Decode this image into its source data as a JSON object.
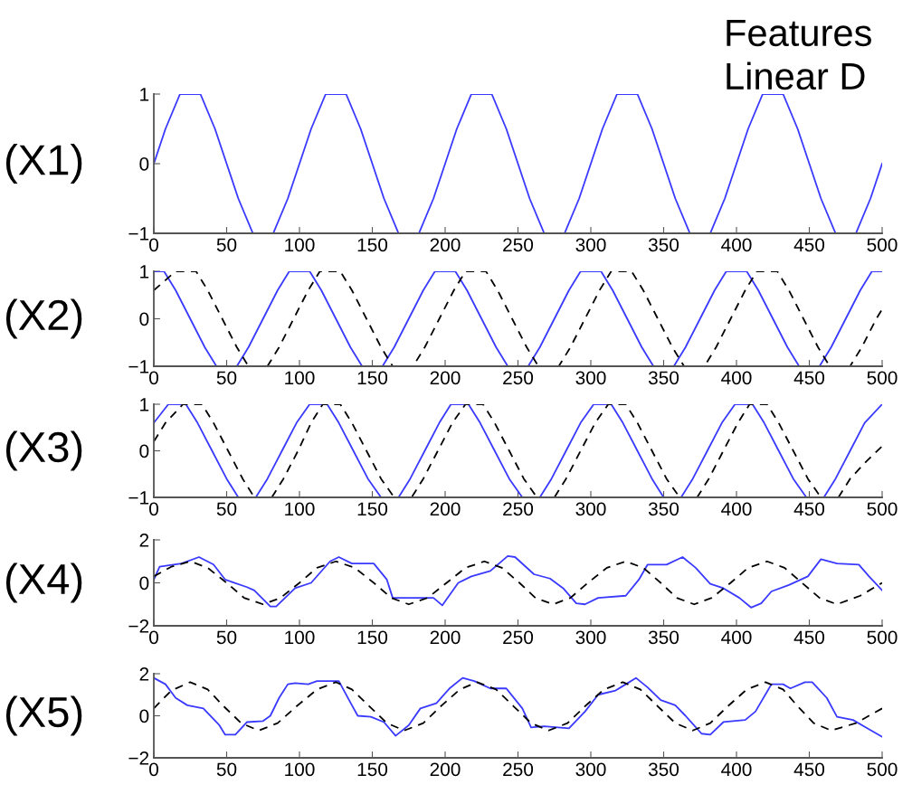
{
  "chart_data": [
    {
      "type": "line",
      "annotations": [
        "Features",
        "Linear D"
      ],
      "ylabel": "(X1)",
      "xlim": [
        0,
        500
      ],
      "xticks": [
        0,
        50,
        100,
        150,
        200,
        250,
        300,
        350,
        400,
        450,
        500
      ],
      "ylim": [
        -1,
        1
      ],
      "yticks": [
        -1,
        0,
        1
      ],
      "grid": false,
      "series": [
        {
          "color": "#3a3aff",
          "line_style": "solid",
          "x": [
            0,
            8,
            18,
            32,
            42,
            50,
            58,
            68,
            82,
            92,
            100,
            108,
            118,
            132,
            142,
            150,
            158,
            168,
            182,
            192,
            200,
            208,
            218,
            232,
            242,
            250,
            258,
            268,
            282,
            292,
            300,
            308,
            318,
            332,
            342,
            350,
            358,
            368,
            382,
            392,
            400,
            408,
            418,
            432,
            442,
            450,
            458,
            468,
            482,
            492,
            500
          ],
          "values": [
            0,
            0.5,
            1,
            1,
            0.5,
            0,
            -0.5,
            -1,
            -1,
            -0.5,
            0,
            0.5,
            1,
            1,
            0.5,
            0,
            -0.5,
            -1,
            -1,
            -0.5,
            0,
            0.5,
            1,
            1,
            0.5,
            0,
            -0.5,
            -1,
            -1,
            -0.5,
            0,
            0.5,
            1,
            1,
            0.5,
            0,
            -0.5,
            -1,
            -1,
            -0.5,
            0,
            0.5,
            1,
            1,
            0.5,
            0,
            -0.5,
            -1,
            -1,
            -0.5,
            0
          ]
        }
      ]
    },
    {
      "type": "line",
      "ylabel": "(X2)",
      "xlim": [
        0,
        500
      ],
      "xticks": [
        0,
        50,
        100,
        150,
        200,
        250,
        300,
        350,
        400,
        450,
        500
      ],
      "ylim": [
        -1,
        1
      ],
      "yticks": [
        -1,
        0,
        1
      ],
      "grid": false,
      "series": [
        {
          "color": "#3a3aff",
          "line_style": "solid",
          "x": [
            0,
            7,
            15,
            25,
            35,
            43,
            57,
            65,
            75,
            85,
            93,
            107,
            115,
            125,
            135,
            143,
            157,
            165,
            175,
            185,
            193,
            207,
            215,
            225,
            235,
            243,
            257,
            265,
            275,
            285,
            293,
            307,
            315,
            325,
            335,
            343,
            357,
            365,
            375,
            385,
            393,
            407,
            415,
            425,
            435,
            443,
            457,
            465,
            475,
            485,
            493,
            500
          ],
          "values": [
            1,
            1,
            0.6,
            0,
            -0.6,
            -1,
            -1,
            -0.6,
            0,
            0.6,
            1,
            1,
            0.6,
            0,
            -0.6,
            -1,
            -1,
            -0.6,
            0,
            0.6,
            1,
            1,
            0.6,
            0,
            -0.6,
            -1,
            -1,
            -0.6,
            0,
            0.6,
            1,
            1,
            0.6,
            0,
            -0.6,
            -1,
            -1,
            -0.6,
            0,
            0.6,
            1,
            1,
            0.6,
            0,
            -0.6,
            -1,
            -1,
            -0.6,
            0,
            0.6,
            1,
            1
          ]
        },
        {
          "color": "#000000",
          "line_style": "dashed",
          "x": [
            0,
            15,
            29,
            37,
            47,
            57,
            65,
            78,
            86,
            96,
            106,
            114,
            128,
            136,
            146,
            156,
            164,
            178,
            186,
            196,
            206,
            214,
            228,
            236,
            246,
            256,
            264,
            278,
            286,
            296,
            306,
            314,
            328,
            336,
            346,
            356,
            364,
            378,
            386,
            396,
            406,
            414,
            428,
            436,
            446,
            456,
            464,
            478,
            486,
            496,
            500
          ],
          "values": [
            0.6,
            1,
            1,
            0.6,
            0,
            -0.6,
            -1,
            -1,
            -0.6,
            0,
            0.6,
            1,
            1,
            0.6,
            0,
            -0.6,
            -1,
            -1,
            -0.6,
            0,
            0.6,
            1,
            1,
            0.6,
            0,
            -0.6,
            -1,
            -1,
            -0.6,
            0,
            0.6,
            1,
            1,
            0.6,
            0,
            -0.6,
            -1,
            -1,
            -0.6,
            0,
            0.6,
            1,
            1,
            0.6,
            0,
            -0.6,
            -1,
            -1,
            -0.6,
            0,
            0.2
          ]
        }
      ]
    },
    {
      "type": "line",
      "ylabel": "(X3)",
      "xlim": [
        0,
        500
      ],
      "xticks": [
        0,
        50,
        100,
        150,
        200,
        250,
        300,
        350,
        400,
        450,
        500
      ],
      "ylim": [
        -1,
        1
      ],
      "yticks": [
        -1,
        0,
        1
      ],
      "grid": false,
      "series": [
        {
          "color": "#3a3aff",
          "line_style": "solid",
          "x": [
            0,
            10,
            22,
            30,
            40,
            50,
            58,
            70,
            78,
            88,
            98,
            107,
            119,
            127,
            137,
            147,
            156,
            168,
            176,
            186,
            196,
            204,
            216,
            224,
            234,
            244,
            253,
            265,
            273,
            283,
            293,
            302,
            314,
            322,
            332,
            342,
            350,
            362,
            370,
            380,
            390,
            399,
            411,
            419,
            429,
            439,
            448,
            460,
            468,
            478,
            488,
            500
          ],
          "values": [
            0.6,
            1,
            1,
            0.6,
            0,
            -0.6,
            -1,
            -1,
            -0.6,
            0,
            0.6,
            1,
            1,
            0.6,
            0,
            -0.6,
            -1,
            -1,
            -0.6,
            0,
            0.6,
            1,
            1,
            0.6,
            0,
            -0.6,
            -1,
            -1,
            -0.6,
            0,
            0.6,
            1,
            1,
            0.6,
            0,
            -0.6,
            -1,
            -1,
            -0.6,
            0,
            0.6,
            1,
            1,
            0.6,
            0,
            -0.6,
            -1,
            -1,
            -0.6,
            0,
            0.6,
            1
          ]
        },
        {
          "color": "#000000",
          "line_style": "dashed",
          "x": [
            0,
            8,
            20,
            33,
            41,
            51,
            61,
            69,
            81,
            89,
            99,
            108,
            116,
            128,
            136,
            146,
            156,
            165,
            177,
            185,
            195,
            205,
            214,
            226,
            234,
            244,
            254,
            263,
            275,
            283,
            293,
            303,
            312,
            324,
            332,
            342,
            352,
            361,
            373,
            381,
            391,
            401,
            409,
            421,
            429,
            439,
            449,
            458,
            470,
            478,
            490,
            500
          ],
          "values": [
            0.2,
            0.6,
            1,
            1,
            0.6,
            0,
            -0.6,
            -1,
            -1,
            -0.6,
            0,
            0.6,
            1,
            1,
            0.6,
            0,
            -0.6,
            -1,
            -1,
            -0.6,
            0,
            0.6,
            1,
            1,
            0.6,
            0,
            -0.6,
            -1,
            -1,
            -0.6,
            0,
            0.6,
            1,
            1,
            0.6,
            0,
            -0.6,
            -1,
            -1,
            -0.6,
            0,
            0.6,
            1,
            1,
            0.6,
            0,
            -0.6,
            -1,
            -1,
            -0.6,
            -0.2,
            0.1
          ]
        }
      ]
    },
    {
      "type": "line",
      "ylabel": "(X4)",
      "xlim": [
        0,
        500
      ],
      "xticks": [
        0,
        50,
        100,
        150,
        200,
        250,
        300,
        350,
        400,
        450,
        500
      ],
      "ylim": [
        -2,
        2
      ],
      "yticks": [
        -2,
        0,
        2
      ],
      "grid": false,
      "series": [
        {
          "color": "#3a3aff",
          "line_style": "solid",
          "x": [
            0,
            4,
            19,
            31,
            41,
            49,
            64,
            69,
            80,
            84,
            97,
            108,
            121,
            127,
            136,
            151,
            160,
            164,
            179,
            192,
            198,
            209,
            218,
            231,
            243,
            248,
            261,
            272,
            281,
            290,
            296,
            305,
            324,
            333,
            339,
            352,
            363,
            372,
            382,
            391,
            402,
            410,
            417,
            424,
            436,
            449,
            458,
            469,
            484,
            491,
            500
          ],
          "values": [
            0.15,
            0.75,
            0.9,
            1.2,
            0.85,
            0.15,
            -0.2,
            -0.35,
            -1.1,
            -1.1,
            -0.25,
            0,
            1.0,
            1.2,
            0.9,
            0.9,
            0.15,
            -0.7,
            -0.7,
            -0.7,
            -1.05,
            0,
            0.3,
            0.55,
            1.25,
            1.2,
            0.4,
            0.2,
            -0.25,
            -0.95,
            -1.0,
            -0.7,
            -0.6,
            0.15,
            0.85,
            0.85,
            1.2,
            0.7,
            -0.05,
            -0.25,
            -0.7,
            -1.15,
            -0.95,
            -0.4,
            -0.1,
            0.3,
            1.1,
            0.9,
            0.85,
            0.3,
            -0.35
          ]
        },
        {
          "color": "#000000",
          "line_style": "dashed",
          "x": [
            0,
            12,
            25,
            37,
            50,
            62,
            75,
            87,
            100,
            112,
            125,
            138,
            151,
            163,
            175,
            188,
            201,
            214,
            227,
            239,
            251,
            262,
            274,
            286,
            298,
            311,
            324,
            336,
            348,
            359,
            371,
            383,
            396,
            408,
            421,
            433,
            445,
            457,
            469,
            485,
            500
          ],
          "values": [
            0.3,
            0.75,
            1,
            0.7,
            0,
            -0.7,
            -1,
            -0.7,
            0,
            0.7,
            1,
            0.7,
            0,
            -0.7,
            -1,
            -0.7,
            0,
            0.7,
            1,
            0.7,
            0,
            -0.7,
            -1,
            -0.7,
            0,
            0.7,
            1,
            0.7,
            0,
            -0.7,
            -1,
            -0.7,
            0,
            0.7,
            1,
            0.7,
            0,
            -0.7,
            -1,
            -0.6,
            0
          ]
        }
      ]
    },
    {
      "type": "line",
      "ylabel": "(X5)",
      "xlim": [
        0,
        500
      ],
      "xticks": [
        0,
        50,
        100,
        150,
        200,
        250,
        300,
        350,
        400,
        450,
        500
      ],
      "ylim": [
        -2,
        2
      ],
      "yticks": [
        -2,
        0,
        2
      ],
      "grid": false,
      "series": [
        {
          "color": "#3a3aff",
          "line_style": "solid",
          "x": [
            0,
            8,
            15,
            23,
            34,
            45,
            49,
            56,
            64,
            75,
            80,
            86,
            92,
            97,
            106,
            112,
            127,
            136,
            140,
            149,
            158,
            166,
            175,
            183,
            194,
            203,
            212,
            220,
            231,
            242,
            253,
            259,
            268,
            285,
            296,
            305,
            317,
            324,
            331,
            339,
            348,
            358,
            365,
            376,
            382,
            391,
            406,
            413,
            424,
            432,
            437,
            447,
            452,
            462,
            469,
            480,
            490,
            500
          ],
          "values": [
            1.8,
            1.5,
            0.85,
            0.5,
            0.35,
            -0.45,
            -0.9,
            -0.9,
            -0.3,
            -0.25,
            0,
            0.85,
            1.5,
            1.55,
            1.5,
            1.65,
            1.65,
            0.5,
            0,
            -0.05,
            -0.3,
            -0.95,
            -0.45,
            0.35,
            0.6,
            1.3,
            1.8,
            1.65,
            1.3,
            1.3,
            0.35,
            -0.55,
            -0.5,
            -0.6,
            0.2,
            1.0,
            1.2,
            1.5,
            1.8,
            1.35,
            0.75,
            0.5,
            0,
            -0.85,
            -0.9,
            -0.3,
            -0.2,
            0.2,
            1.5,
            1.5,
            1.3,
            1.6,
            1.6,
            0.85,
            -0.05,
            -0.2,
            -0.6,
            -1.0
          ]
        },
        {
          "color": "#000000",
          "line_style": "dashed",
          "x": [
            0,
            12,
            25,
            37,
            48,
            60,
            72,
            85,
            98,
            112,
            125,
            136,
            148,
            160,
            172,
            185,
            197,
            210,
            222,
            235,
            247,
            259,
            271,
            284,
            296,
            309,
            322,
            334,
            346,
            358,
            370,
            382,
            394,
            407,
            420,
            432,
            442,
            453,
            465,
            482,
            500
          ],
          "values": [
            0.35,
            1.2,
            1.6,
            1.25,
            0.45,
            -0.35,
            -0.7,
            -0.35,
            0.45,
            1.25,
            1.6,
            1.25,
            0.45,
            -0.35,
            -0.7,
            -0.35,
            0.45,
            1.25,
            1.6,
            1.25,
            0.45,
            -0.35,
            -0.7,
            -0.35,
            0.45,
            1.25,
            1.6,
            1.25,
            0.45,
            -0.35,
            -0.7,
            -0.35,
            0.45,
            1.25,
            1.6,
            1.25,
            0.45,
            -0.35,
            -0.7,
            -0.35,
            0.35
          ]
        }
      ]
    }
  ]
}
